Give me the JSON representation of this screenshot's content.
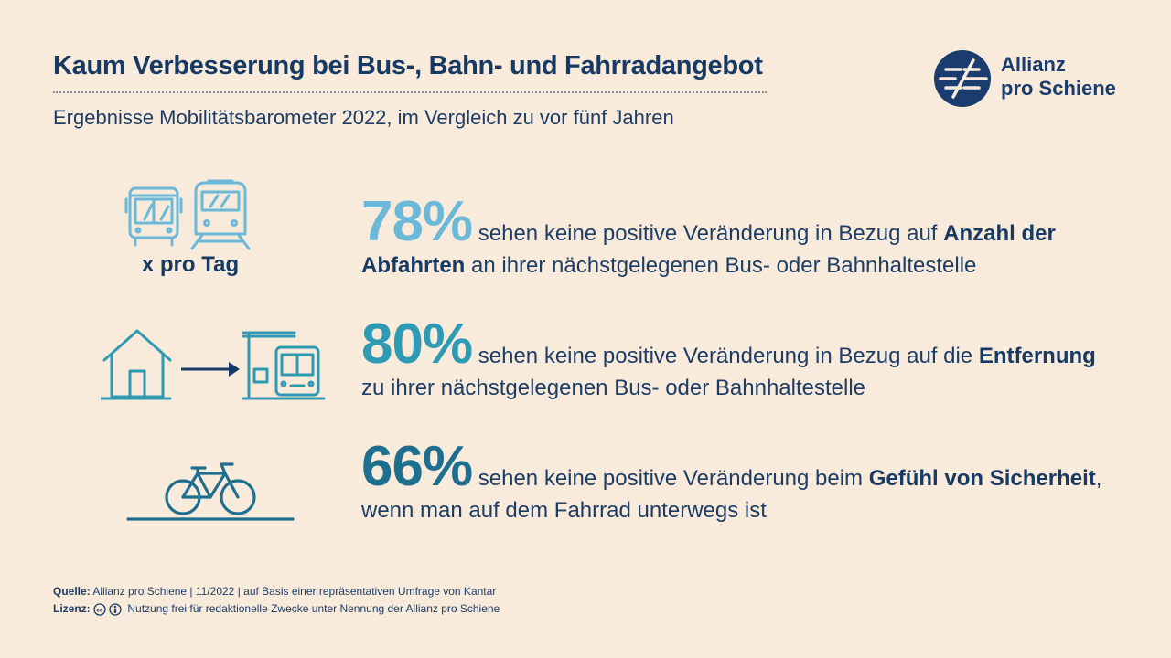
{
  "header": {
    "title": "Kaum Verbesserung bei Bus-, Bahn- und Fahrradangebot",
    "subtitle": "Ergebnisse Mobilitätsbarometer 2022, im Vergleich zu vor fünf Jahren"
  },
  "logo": {
    "line1": "Allianz",
    "line2": "pro Schiene",
    "icon": "allianz-pro-schiene-logo-icon"
  },
  "icon_label": "x pro Tag",
  "stats": [
    {
      "percent": "78%",
      "color": "#6cb8d8",
      "text_before": "sehen keine positive Veränderung in Bezug auf ",
      "bold1": "Anzahl der",
      "bold2": "Abfahrten",
      "text_after": " an ihrer nächstgelegenen Bus- oder Bahnhaltestelle",
      "icon": "bus-and-train-icon"
    },
    {
      "percent": "80%",
      "color": "#2e9ab3",
      "text_before": " sehen keine positive Veränderung in Bezug auf die ",
      "bold1": "Entfernung",
      "line2": "zu ihrer nächstgelegenen Bus- oder Bahnhaltestelle",
      "icon": "house-to-bus-stop-icon"
    },
    {
      "percent": "66%",
      "color": "#1e6f8f",
      "text_before": "sehen keine positive Veränderung beim ",
      "bold1": "Gefühl von Sicherheit",
      "text_after": ",",
      "line2": "wenn man auf dem Fahrrad unterwegs ist",
      "icon": "bicycle-icon"
    }
  ],
  "chart_data": {
    "type": "table",
    "categories": [
      "Anzahl der Abfahrten",
      "Entfernung",
      "Gefühl von Sicherheit"
    ],
    "values": [
      78,
      80,
      66
    ]
  },
  "footer": {
    "source_label": "Quelle:",
    "source_text": " Allianz pro Schiene | 11/2022 | auf Basis einer repräsentativen Umfrage von Kantar",
    "license_label": "Lizenz:",
    "license_text": " Nutzung frei für redaktionelle Zwecke unter Nennung der Allianz pro Schiene"
  }
}
